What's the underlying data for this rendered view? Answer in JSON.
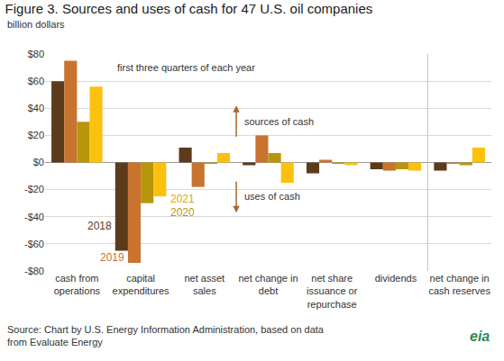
{
  "chart_data": {
    "type": "bar",
    "title": "Figure 3. Sources and uses of cash for 47 U.S. oil companies",
    "subtitle": "billion dollars",
    "source": "Source: Chart by U.S. Energy Information Administration, based on data from Evaluate Energy",
    "logo": "eia",
    "categories": [
      "cash from operations",
      "capital expenditures",
      "net asset sales",
      "net change in debt",
      "net share issuance or repurchase",
      "dividends",
      "net change in cash reserves"
    ],
    "series": [
      {
        "name": "2018",
        "color": "#5c3a1c",
        "values": [
          60,
          -65,
          11,
          -2,
          -8,
          -5,
          -6
        ]
      },
      {
        "name": "2019",
        "color": "#c8742f",
        "values": [
          75,
          -74,
          -18,
          20,
          2,
          -6,
          -1
        ]
      },
      {
        "name": "2020",
        "color": "#b8960c",
        "values": [
          30,
          -30,
          -1,
          7,
          -1,
          -5,
          -2
        ]
      },
      {
        "name": "2021",
        "color": "#fcc10f",
        "values": [
          56,
          -25,
          7,
          -15,
          -2,
          -6,
          11
        ]
      }
    ],
    "ylim": [
      -80,
      80
    ],
    "yticks": [
      {
        "value": -80,
        "label": "-$80"
      },
      {
        "value": -60,
        "label": "-$60"
      },
      {
        "value": -40,
        "label": "-$40"
      },
      {
        "value": -20,
        "label": "-$20"
      },
      {
        "value": 0,
        "label": "$0"
      },
      {
        "value": 20,
        "label": "$20"
      },
      {
        "value": 40,
        "label": "$40"
      },
      {
        "value": 60,
        "label": "$60"
      },
      {
        "value": 80,
        "label": "$80"
      }
    ],
    "grid": true,
    "annotations": [
      {
        "text": "first three quarters of each year",
        "x": "cash from operations",
        "y": 70
      },
      {
        "text": "sources of cash",
        "x": "net asset sales",
        "y": 30
      },
      {
        "text": "uses of cash",
        "x": "net asset sales",
        "y": -25
      },
      {
        "text": "2018",
        "x": "capital expenditures",
        "y": -47
      },
      {
        "text": "2019",
        "x": "capital expenditures",
        "y": -70
      },
      {
        "text": "2020",
        "x": "capital expenditures",
        "y": -37
      },
      {
        "text": "2021",
        "x": "capital expenditures",
        "y": -27
      }
    ]
  }
}
